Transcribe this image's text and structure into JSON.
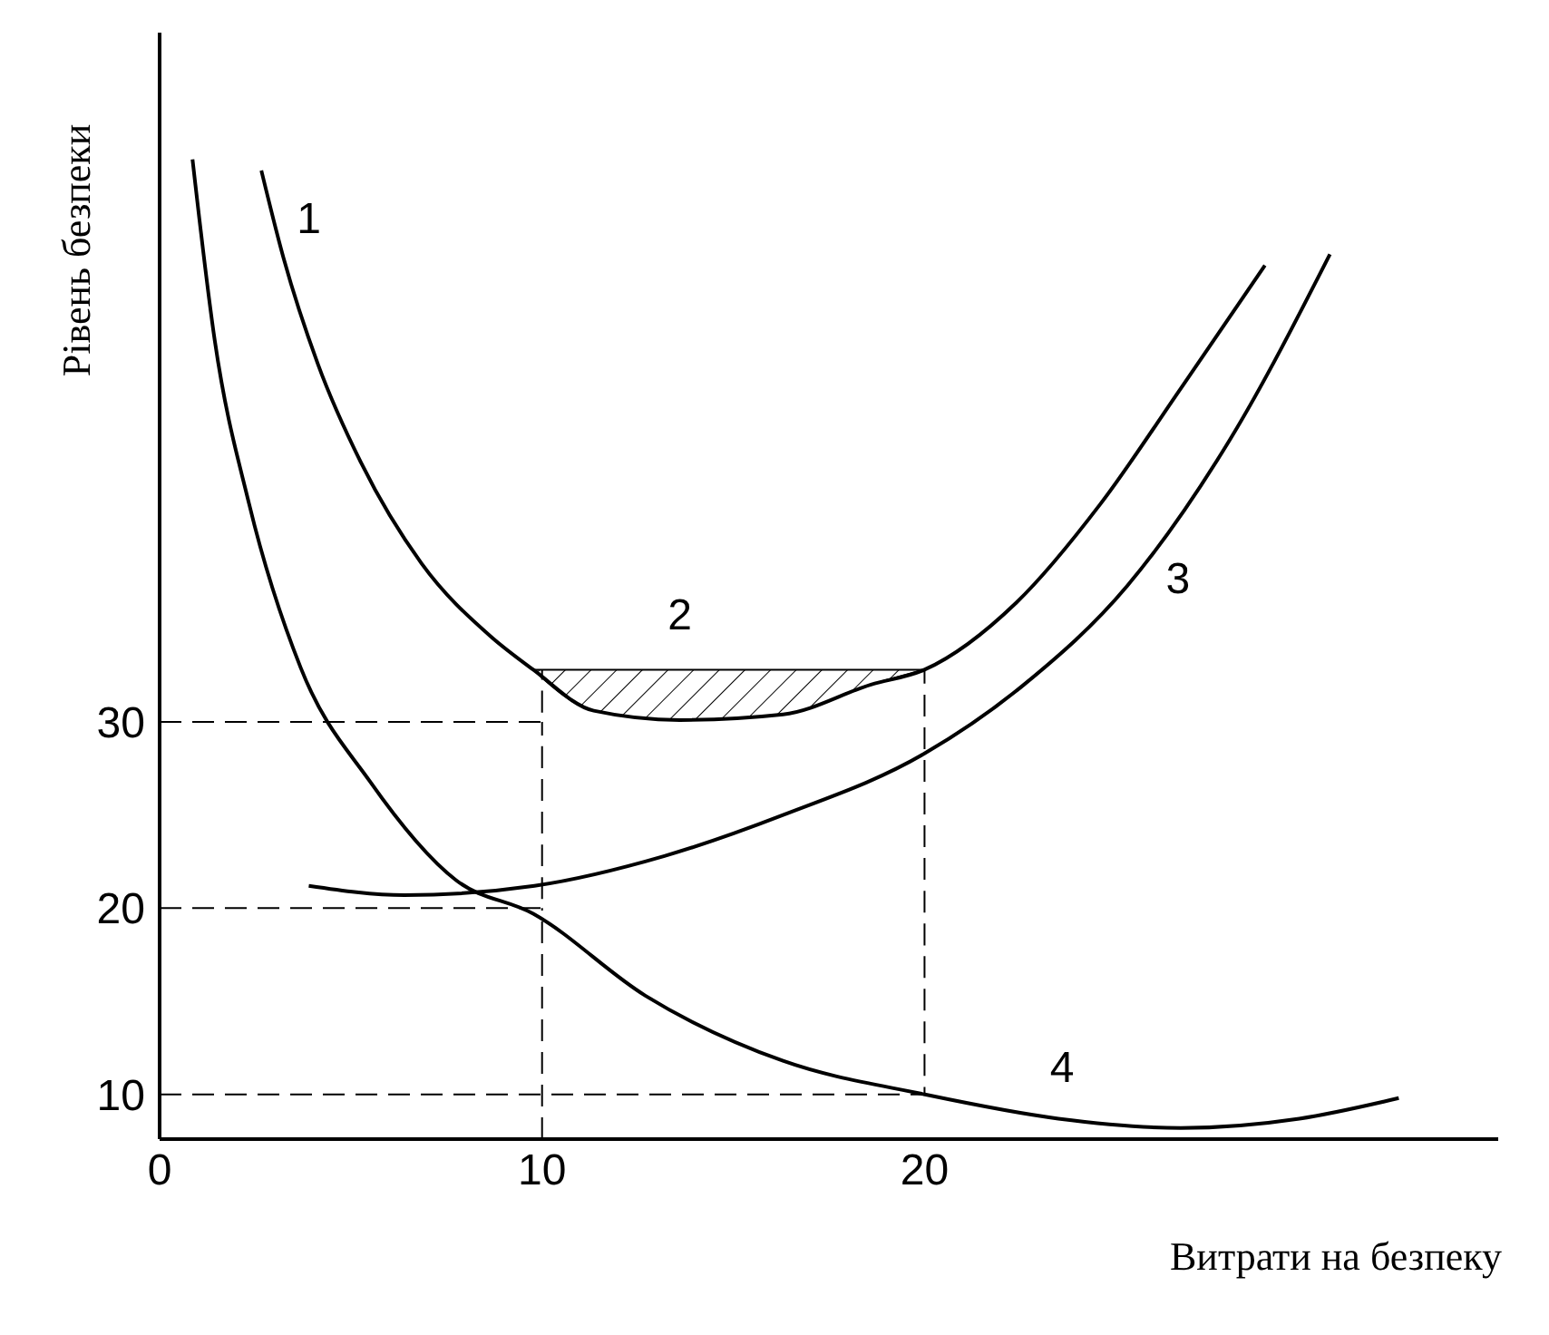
{
  "chart_data": {
    "type": "line",
    "xlabel": "Витрати на безпеку",
    "ylabel": "Рівень безпеки",
    "xlim": [
      0,
      35
    ],
    "ylim": [
      7.6,
      67
    ],
    "xticks": [
      0,
      10,
      20
    ],
    "yticks": [
      10,
      20,
      30
    ],
    "grid": false,
    "legend": false,
    "marker": "none",
    "series": [
      {
        "name": "1",
        "color": "#000000",
        "x": [
          2.66,
          3.24,
          4.14,
          5.27,
          6.85,
          8.65,
          9.77,
          11.35,
          13.6,
          16.3,
          18.6,
          20.0,
          22.4,
          24.6,
          26.7,
          28.9
        ],
        "values": [
          59.6,
          54.9,
          49.2,
          43.9,
          38.5,
          34.6,
          32.8,
          30.6,
          30.1,
          30.4,
          32.0,
          32.8,
          36.4,
          41.7,
          47.9,
          54.5
        ]
      },
      {
        "name": "2",
        "type": "area",
        "color": "#000000",
        "x": [
          9.77,
          11.35,
          13.6,
          16.3,
          18.6,
          20.0
        ],
        "values": [
          32.8,
          32.8,
          32.8,
          32.8,
          32.8,
          32.8
        ]
      },
      {
        "name": "3",
        "color": "#000000",
        "x": [
          3.9,
          6.4,
          9.8,
          13.2,
          16.3,
          20.0,
          22.6,
          25.3,
          28.0,
          30.6
        ],
        "values": [
          21.2,
          20.7,
          21.2,
          22.8,
          25.0,
          28.3,
          32.0,
          37.3,
          45.2,
          55.1
        ]
      },
      {
        "name": "4",
        "color": "#000000",
        "x": [
          0.86,
          1.44,
          2.34,
          3.69,
          5.5,
          7.75,
          9.77,
          12.7,
          16.3,
          20.0,
          23.5,
          26.7,
          29.8,
          32.4
        ],
        "values": [
          60.2,
          50.5,
          41.7,
          32.9,
          26.8,
          21.5,
          19.7,
          15.3,
          11.8,
          10.0,
          8.7,
          8.2,
          8.7,
          9.8
        ]
      },
      {
        "color": "#000000",
        "line_style": "dashed",
        "x": [
          0,
          10,
          10
        ],
        "values": [
          30,
          30,
          32.8
        ]
      },
      {
        "color": "#000000",
        "line_style": "dashed",
        "x": [
          0,
          10,
          10
        ],
        "values": [
          20,
          20,
          30
        ]
      },
      {
        "color": "#000000",
        "line_style": "dashed",
        "x": [
          0,
          20,
          20
        ],
        "values": [
          10,
          10,
          32.8
        ]
      },
      {
        "color": "#000000",
        "line_style": "dashed",
        "x": [
          10,
          10
        ],
        "values": [
          7.6,
          20
        ]
      }
    ]
  }
}
